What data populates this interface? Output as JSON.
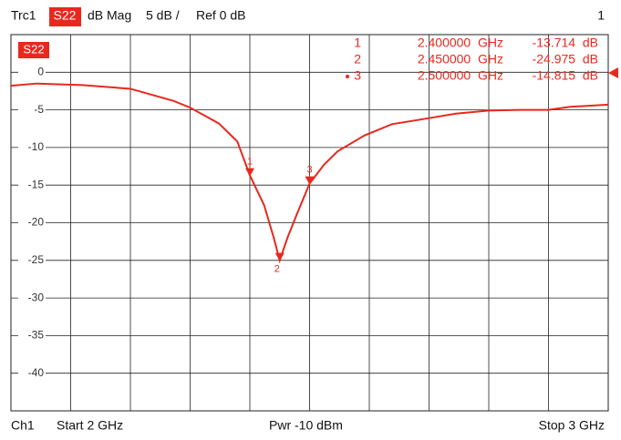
{
  "header": {
    "trace": "Trc1",
    "param": "S22",
    "format": "dB Mag",
    "scale": "5 dB /",
    "ref": "Ref 0 dB",
    "channel_no": "1"
  },
  "footer": {
    "channel": "Ch1",
    "start": "Start 2 GHz",
    "power": "Pwr -10 dBm",
    "stop": "Stop 3 GHz"
  },
  "chart_data": {
    "type": "line",
    "trace_label": "S22",
    "x": [
      2.0,
      2.043,
      2.119,
      2.2,
      2.272,
      2.3,
      2.348,
      2.379,
      2.4,
      2.424,
      2.44,
      2.45,
      2.463,
      2.478,
      2.5,
      2.524,
      2.547,
      2.592,
      2.638,
      2.7,
      2.745,
      2.8,
      2.852,
      2.9,
      2.936,
      3.0
    ],
    "series": [
      {
        "name": "S22",
        "color": "#e8281e",
        "values": [
          -1.8,
          -1.5,
          -1.7,
          -2.2,
          -3.8,
          -4.7,
          -6.8,
          -9.2,
          -13.7,
          -17.7,
          -22.0,
          -25.0,
          -22.0,
          -19.0,
          -14.8,
          -12.3,
          -10.5,
          -8.4,
          -6.9,
          -6.1,
          -5.5,
          -5.1,
          -5.0,
          -5.0,
          -4.6,
          -4.3
        ]
      }
    ],
    "xlim": [
      2,
      3
    ],
    "xticks": [
      2.1,
      2.2,
      2.3,
      2.4,
      2.5,
      2.6,
      2.7,
      2.8,
      2.9
    ],
    "ylim": [
      -45,
      5
    ],
    "yticks": [
      0,
      -5,
      -10,
      -15,
      -20,
      -25,
      -30,
      -35,
      -40
    ],
    "grid": true,
    "markers": [
      {
        "label": "1",
        "x": 2.4,
        "y": -13.714,
        "freq": "2.400000  GHz",
        "level": "-13.714  dB"
      },
      {
        "label": "2",
        "x": 2.45,
        "y": -24.975,
        "freq": "2.450000  GHz",
        "level": "-24.975  dB"
      },
      {
        "label": "3",
        "x": 2.5,
        "y": -14.815,
        "freq": "2.500000  GHz",
        "level": "-14.815  dB"
      }
    ]
  }
}
